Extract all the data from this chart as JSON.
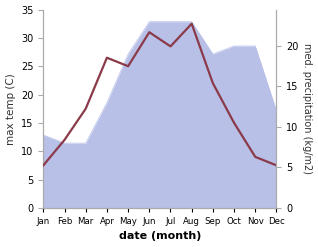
{
  "months": [
    "Jan",
    "Feb",
    "Mar",
    "Apr",
    "May",
    "Jun",
    "Jul",
    "Aug",
    "Sep",
    "Oct",
    "Nov",
    "Dec"
  ],
  "temperature": [
    7.5,
    12.0,
    17.5,
    26.5,
    25.0,
    31.0,
    28.5,
    32.5,
    22.0,
    15.0,
    9.0,
    7.5
  ],
  "precipitation": [
    9,
    8,
    8,
    13,
    19,
    23,
    23,
    23,
    19,
    20,
    20,
    12
  ],
  "temp_color": "#8b3a4a",
  "precip_fill_color": "#b8c0e8",
  "temp_ylim": [
    0,
    35
  ],
  "precip_ylim": [
    0,
    24.5
  ],
  "temp_yticks": [
    0,
    5,
    10,
    15,
    20,
    25,
    30,
    35
  ],
  "precip_yticks": [
    0,
    5,
    10,
    15,
    20
  ],
  "ylabel_left": "max temp (C)",
  "ylabel_right": "med. precipitation (kg/m2)",
  "xlabel": "date (month)",
  "bg_color": "#ffffff",
  "left_spine_color": "#aaaaaa",
  "axis_color": "#555555"
}
